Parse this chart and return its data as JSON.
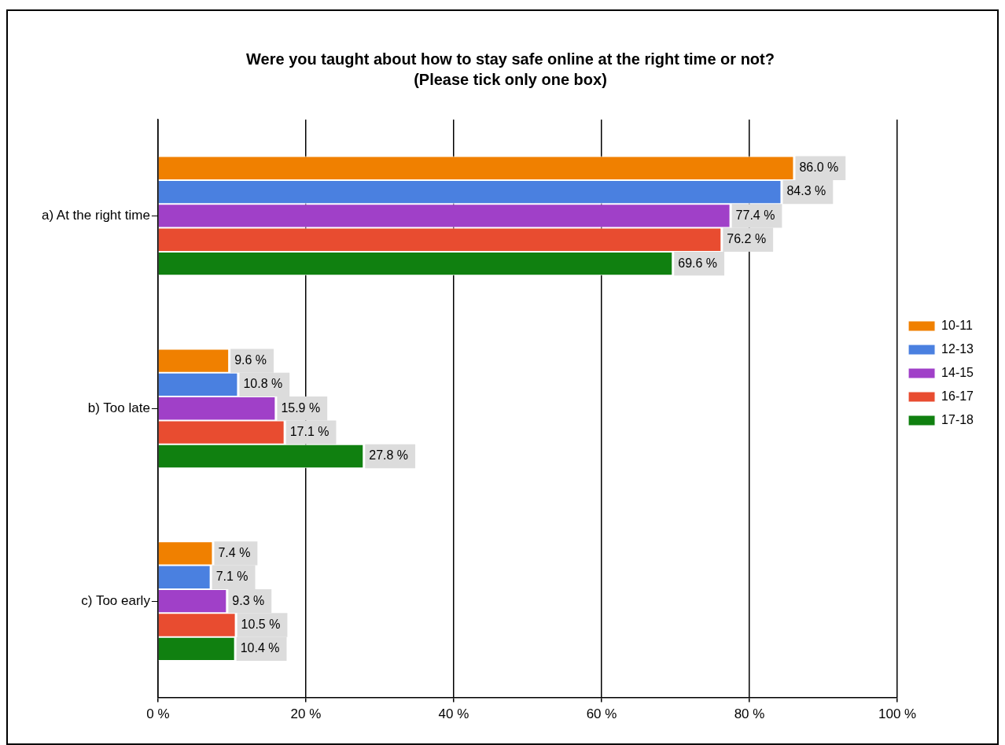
{
  "chart_data": {
    "type": "bar",
    "orientation": "horizontal",
    "title": "Were you taught about how to stay safe online at the right time or not?",
    "subtitle": "(Please tick only one box)",
    "categories": [
      "a) At the right time",
      "b) Too late",
      "c) Too early"
    ],
    "series": [
      {
        "name": "10-11",
        "color": "#f08000",
        "values": [
          86.0,
          9.6,
          7.4
        ],
        "value_labels": [
          "86.0 %",
          "9.6 %",
          "7.4 %"
        ]
      },
      {
        "name": "12-13",
        "color": "#4a80e0",
        "values": [
          84.3,
          10.8,
          7.1
        ],
        "value_labels": [
          "84.3 %",
          "10.8 %",
          "7.1 %"
        ]
      },
      {
        "name": "14-15",
        "color": "#a040c8",
        "values": [
          77.4,
          15.9,
          9.3
        ],
        "value_labels": [
          "77.4 %",
          "15.9 %",
          "9.3 %"
        ]
      },
      {
        "name": "16-17",
        "color": "#e84c30",
        "values": [
          76.2,
          17.1,
          10.5
        ],
        "value_labels": [
          "76.2 %",
          "17.1 %",
          "10.5 %"
        ]
      },
      {
        "name": "17-18",
        "color": "#108010",
        "values": [
          69.6,
          27.8,
          10.4
        ],
        "value_labels": [
          "69.6 %",
          "27.8 %",
          "10.4 %"
        ]
      }
    ],
    "xlim": [
      0,
      100
    ],
    "xticks": [
      {
        "value": 0,
        "label": "0 %"
      },
      {
        "value": 20,
        "label": "20 %"
      },
      {
        "value": 40,
        "label": "40 %"
      },
      {
        "value": 60,
        "label": "60 %"
      },
      {
        "value": 80,
        "label": "80 %"
      },
      {
        "value": 100,
        "label": "100 %"
      }
    ],
    "grid": "x",
    "legend": "right"
  }
}
